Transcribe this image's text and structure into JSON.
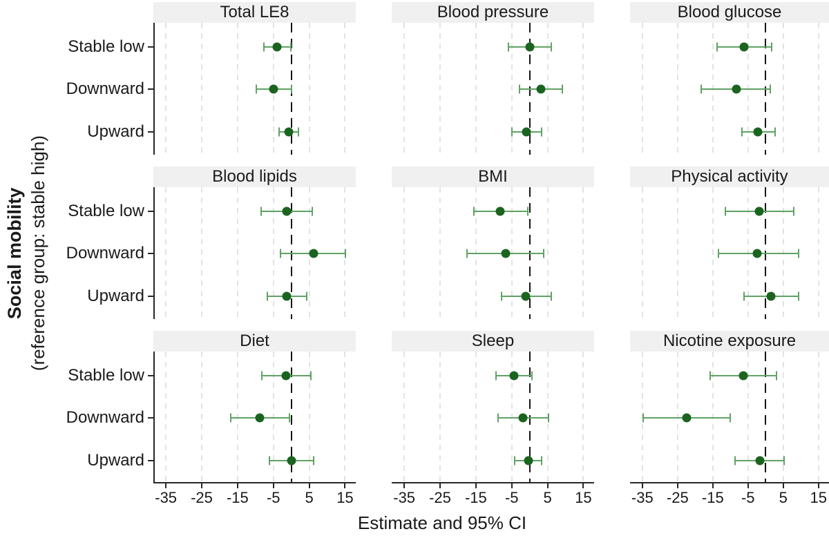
{
  "figure": {
    "ylabel_bold": "Social mobility",
    "ylabel_sub": "(reference group: stable high)",
    "xlabel": "Estimate and 95% CI"
  },
  "chart_data": {
    "type": "scatter",
    "subtype": "forest-plot",
    "title": "",
    "xlabel": "Estimate and 95% CI",
    "ylabel": "Social mobility (reference group: stable high)",
    "rows": [
      "Stable low",
      "Downward",
      "Upward"
    ],
    "x_ticks": [
      -35,
      -25,
      -15,
      -5,
      5,
      15
    ],
    "x_range": [
      -38.5,
      18
    ],
    "reference_line": 0,
    "grid": "dashed-vertical",
    "legend": "none",
    "colors": {
      "marker": "#1b6420",
      "ci": "#5fa263",
      "header_bg": "#f0f0f0",
      "grid": "#e3e3e3",
      "ref_line": "#141414"
    },
    "panels": [
      {
        "title": "Total LE8",
        "estimates": [
          {
            "label": "Stable low",
            "est": -4.0,
            "lo": -7.6,
            "hi": -0.2
          },
          {
            "label": "Downward",
            "est": -5.0,
            "lo": -9.8,
            "hi": 0.0
          },
          {
            "label": "Upward",
            "est": -0.7,
            "lo": -3.4,
            "hi": 2.0
          }
        ]
      },
      {
        "title": "Blood pressure",
        "estimates": [
          {
            "label": "Stable low",
            "est": 0.1,
            "lo": -5.9,
            "hi": 6.0
          },
          {
            "label": "Downward",
            "est": 3.1,
            "lo": -2.8,
            "hi": 9.2
          },
          {
            "label": "Upward",
            "est": -0.9,
            "lo": -4.9,
            "hi": 3.4
          }
        ]
      },
      {
        "title": "Blood glucose",
        "estimates": [
          {
            "label": "Stable low",
            "est": -6.1,
            "lo": -13.7,
            "hi": 1.8
          },
          {
            "label": "Downward",
            "est": -8.3,
            "lo": -18.2,
            "hi": 1.3
          },
          {
            "label": "Upward",
            "est": -2.2,
            "lo": -6.7,
            "hi": 2.6
          }
        ]
      },
      {
        "title": "Blood lipids",
        "estimates": [
          {
            "label": "Stable low",
            "est": -1.3,
            "lo": -8.5,
            "hi": 5.9
          },
          {
            "label": "Downward",
            "est": 6.2,
            "lo": -3.0,
            "hi": 15.2
          },
          {
            "label": "Upward",
            "est": -1.3,
            "lo": -6.6,
            "hi": 4.3
          }
        ]
      },
      {
        "title": "BMI",
        "estimates": [
          {
            "label": "Stable low",
            "est": -8.3,
            "lo": -15.5,
            "hi": -0.5
          },
          {
            "label": "Downward",
            "est": -6.7,
            "lo": -17.4,
            "hi": 4.0
          },
          {
            "label": "Upward",
            "est": -1.1,
            "lo": -7.8,
            "hi": 6.0
          }
        ]
      },
      {
        "title": "Physical activity",
        "estimates": [
          {
            "label": "Stable low",
            "est": -1.9,
            "lo": -11.5,
            "hi": 7.9
          },
          {
            "label": "Downward",
            "est": -2.4,
            "lo": -13.4,
            "hi": 9.3
          },
          {
            "label": "Upward",
            "est": 1.5,
            "lo": -6.2,
            "hi": 9.3
          }
        ]
      },
      {
        "title": "Diet",
        "estimates": [
          {
            "label": "Stable low",
            "est": -1.5,
            "lo": -8.2,
            "hi": 5.4
          },
          {
            "label": "Downward",
            "est": -8.8,
            "lo": -16.9,
            "hi": -0.5
          },
          {
            "label": "Upward",
            "est": 0.0,
            "lo": -6.2,
            "hi": 6.2
          }
        ]
      },
      {
        "title": "Sleep",
        "estimates": [
          {
            "label": "Stable low",
            "est": -4.4,
            "lo": -9.3,
            "hi": 0.6
          },
          {
            "label": "Downward",
            "est": -1.9,
            "lo": -8.8,
            "hi": 5.3
          },
          {
            "label": "Upward",
            "est": -0.4,
            "lo": -4.2,
            "hi": 3.3
          }
        ]
      },
      {
        "title": "Nicotine exposure",
        "estimates": [
          {
            "label": "Stable low",
            "est": -6.3,
            "lo": -15.7,
            "hi": 3.1
          },
          {
            "label": "Downward",
            "est": -22.4,
            "lo": -34.8,
            "hi": -10.1
          },
          {
            "label": "Upward",
            "est": -1.7,
            "lo": -8.7,
            "hi": 5.2
          }
        ]
      }
    ]
  }
}
